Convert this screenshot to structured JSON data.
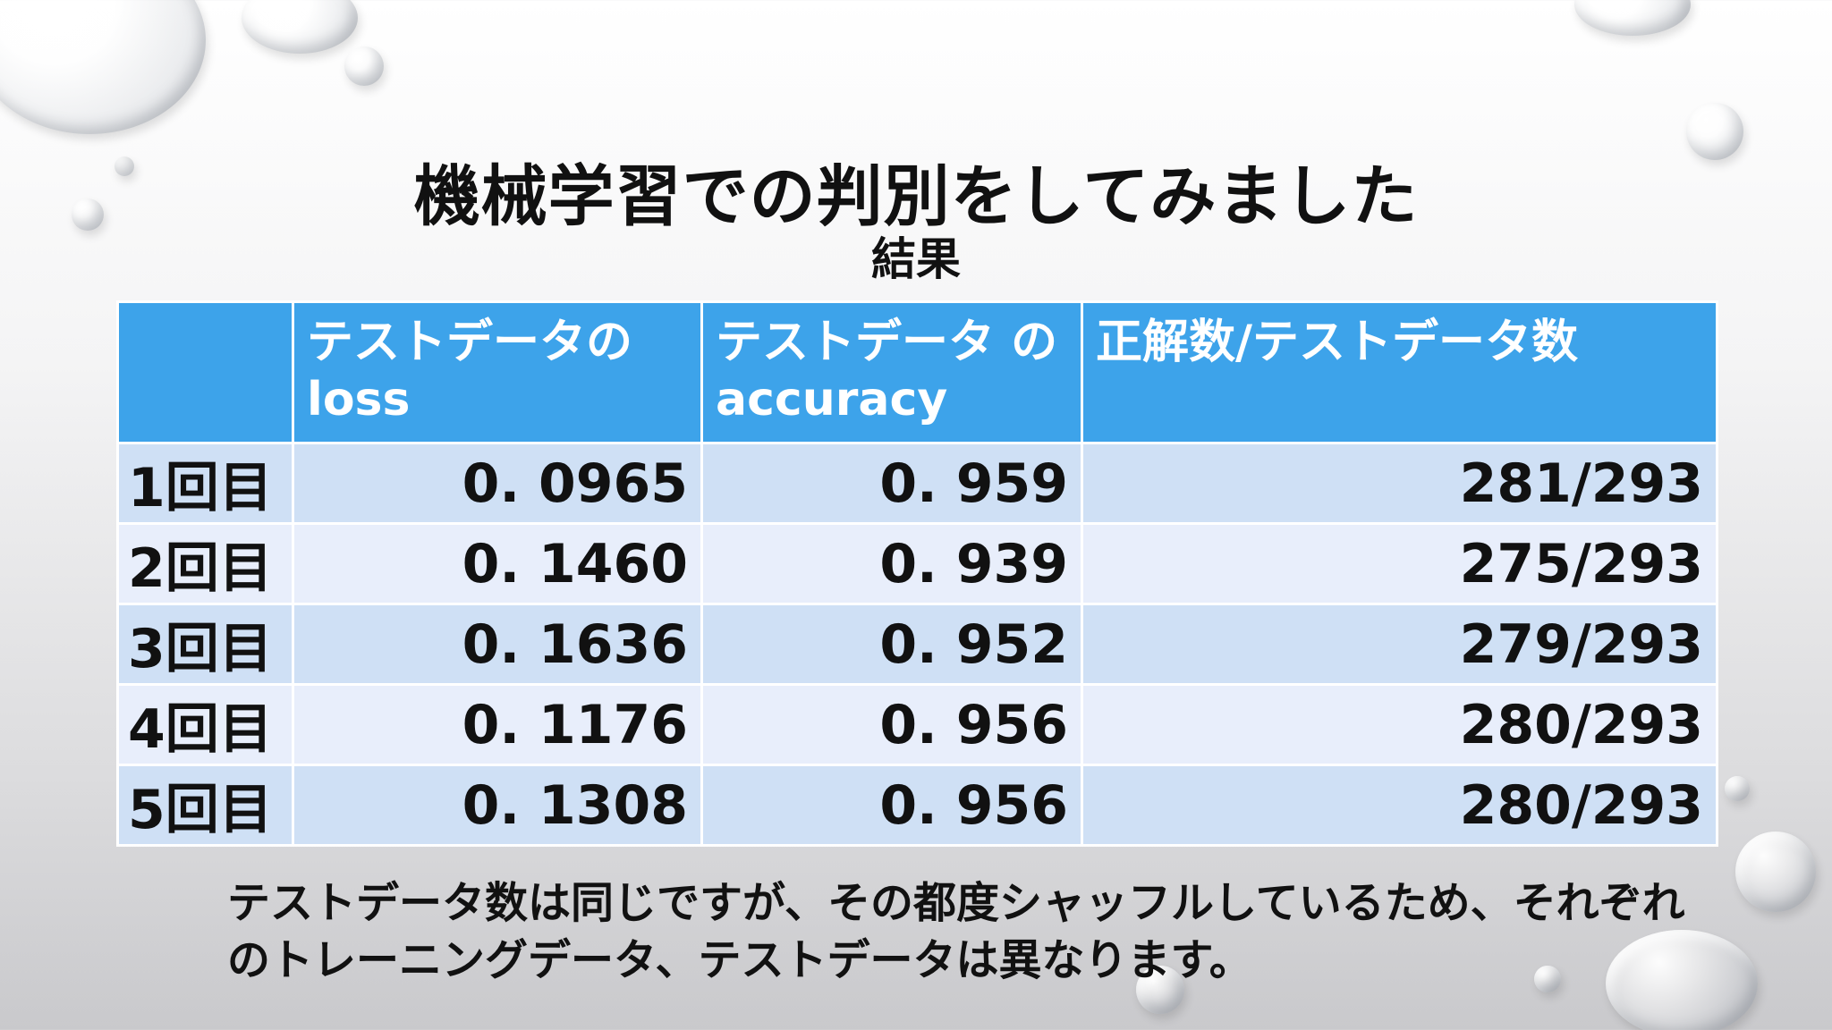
{
  "slide": {
    "title": "機械学習での判別をしてみました",
    "subtitle": "結果"
  },
  "table": {
    "headers": [
      "",
      "テストデータの loss",
      "テストデータ のaccuracy",
      "正解数/テストデータ数"
    ],
    "rows": [
      {
        "label": "1回目",
        "loss": "0. 0965",
        "accuracy": "0. 959",
        "correct": "281/293"
      },
      {
        "label": "2回目",
        "loss": "0. 1460",
        "accuracy": "0. 939",
        "correct": "275/293"
      },
      {
        "label": "3回目",
        "loss": "0. 1636",
        "accuracy": "0. 952",
        "correct": "279/293"
      },
      {
        "label": "4回目",
        "loss": "0. 1176",
        "accuracy": "0. 956",
        "correct": "280/293"
      },
      {
        "label": "5回目",
        "loss": "0. 1308",
        "accuracy": "0. 956",
        "correct": "280/293"
      }
    ]
  },
  "note": "テストデータ数は同じですが、その都度シャッフルしているため、それぞれのトレーニングデータ、テストデータは異なります。",
  "colors": {
    "header_bg": "#3da3ea",
    "row_odd": "#cfe0f5",
    "row_even": "#e8eefb"
  }
}
